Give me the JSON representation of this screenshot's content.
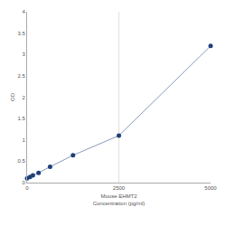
{
  "chart_data": {
    "type": "scatter",
    "x_label": "Mouse EHMT2\nConcentration (pg/ml)",
    "y_label": "OD",
    "x": [
      0,
      78,
      156,
      312,
      625,
      1250,
      2500,
      5000
    ],
    "values": [
      0.1,
      0.13,
      0.17,
      0.23,
      0.37,
      0.64,
      1.1,
      3.2
    ],
    "color": "#1f3f7a",
    "line_color": "#8a9bb8",
    "marker": "circle",
    "line_style": "solid",
    "xlim": [
      0,
      5000
    ],
    "xticks": [
      0,
      2500,
      5000
    ],
    "ylim": [
      0,
      4
    ],
    "yticks": [
      0,
      0.5,
      1,
      1.5,
      2,
      2.5,
      3,
      3.5,
      4
    ],
    "grid": true
  }
}
